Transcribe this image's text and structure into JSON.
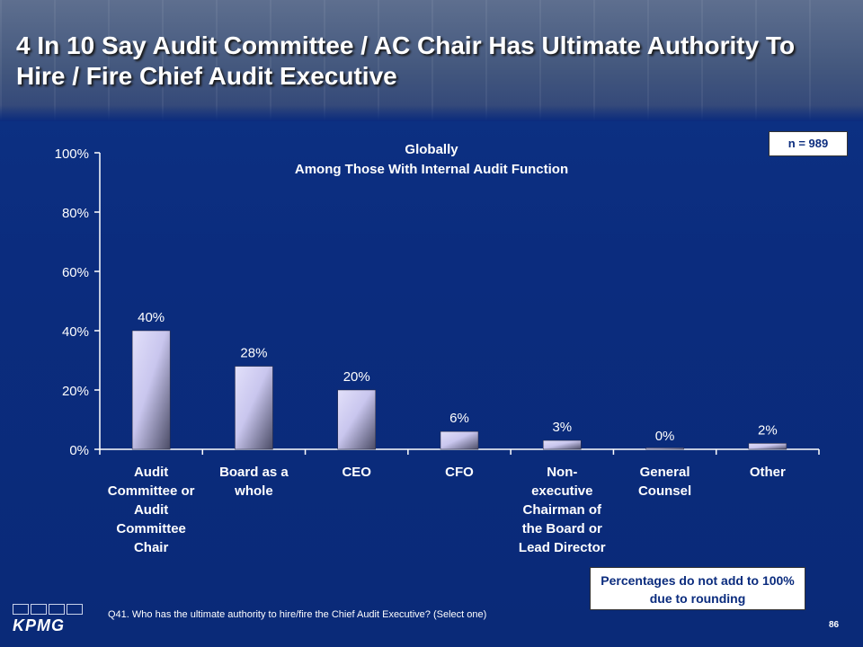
{
  "slide": {
    "title": "4 In 10 Say Audit Committee / AC Chair Has Ultimate Authority To Hire / Fire Chief Audit Executive",
    "n_label": "n = 989",
    "note": "Percentages do not add to 100% due to rounding",
    "question": "Q41. Who has the ultimate authority to hire/fire the Chief Audit Executive? (Select one)",
    "page_number": "86",
    "logo_text": "KPMG"
  },
  "chart_data": {
    "type": "bar",
    "title": "Globally",
    "subtitle": "Among Those With Internal Audit Function",
    "categories": [
      [
        "Audit",
        "Committee or",
        "Audit",
        "Committee",
        "Chair"
      ],
      [
        "Board as a",
        "whole"
      ],
      [
        "CEO"
      ],
      [
        "CFO"
      ],
      [
        "Non-",
        "executive",
        "Chairman of",
        "the Board or",
        "Lead Director"
      ],
      [
        "General",
        "Counsel"
      ],
      [
        "Other"
      ]
    ],
    "values": [
      40,
      28,
      20,
      6,
      3,
      0,
      2
    ],
    "data_labels": [
      "40%",
      "28%",
      "20%",
      "6%",
      "3%",
      "0%",
      "2%"
    ],
    "ylim": [
      0,
      100
    ],
    "yticks": [
      0,
      20,
      40,
      60,
      80,
      100
    ],
    "ytick_labels": [
      "0%",
      "20%",
      "40%",
      "60%",
      "80%",
      "100%"
    ],
    "grid": false,
    "colors": {
      "bar_light": "#d6d4f4",
      "bar_dark": "#4e4f68",
      "axis": "#ffffff",
      "text": "#ffffff"
    }
  }
}
